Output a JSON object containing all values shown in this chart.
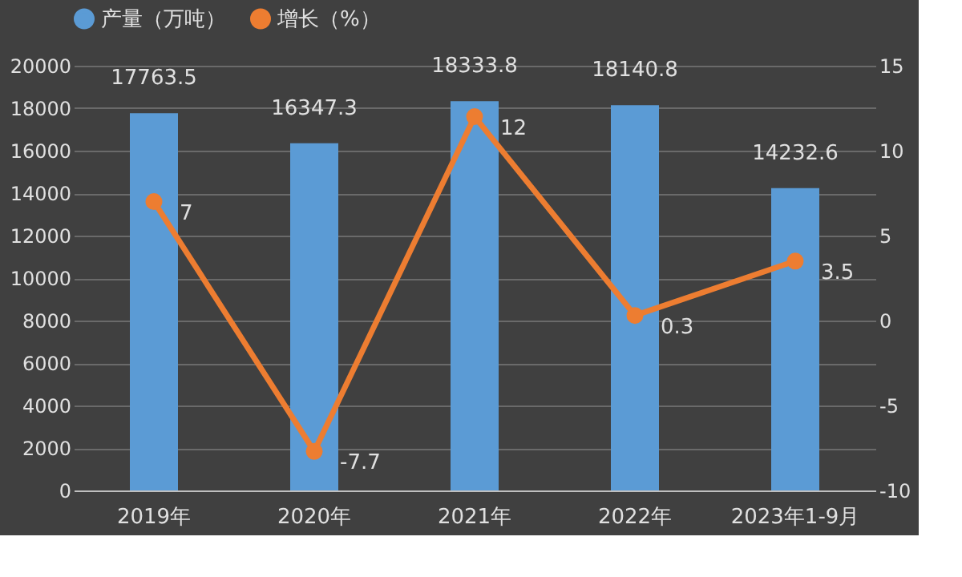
{
  "chart_data": {
    "type": "bar",
    "categories": [
      "2019年",
      "2020年",
      "2021年",
      "2022年",
      "2023年1-9月"
    ],
    "series": [
      {
        "name": "产量（万吨）",
        "color": "#5b9bd5",
        "values": [
          17763.5,
          16347.3,
          18333.8,
          18140.8,
          14232.6
        ]
      },
      {
        "name": "增长（%）",
        "type": "line",
        "axis": "y2",
        "color": "#ed7d31",
        "values": [
          7,
          -7.7,
          12,
          0.3,
          3.5
        ]
      }
    ],
    "ylim": [
      0,
      20000
    ],
    "yticks": [
      0,
      2000,
      4000,
      6000,
      8000,
      10000,
      12000,
      14000,
      16000,
      18000,
      20000
    ],
    "y2lim": [
      -10,
      15
    ],
    "y2ticks": [
      -10,
      -5,
      0,
      5,
      10,
      15
    ],
    "grid": "y",
    "legend": "top",
    "marker": "circle",
    "data_labels": true
  }
}
